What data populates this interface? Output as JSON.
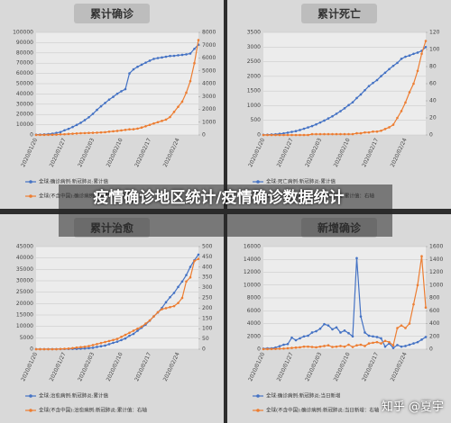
{
  "overlay_title": "疫情确诊地区统计/疫情确诊数据统计",
  "watermark": "知乎 @夏宇",
  "chart_data": [
    {
      "type": "line",
      "title": "累计确诊",
      "categories": [
        "2020/01/20",
        null,
        null,
        null,
        null,
        null,
        null,
        "2020/01/27",
        null,
        null,
        null,
        null,
        null,
        null,
        "2020/02/03",
        null,
        null,
        null,
        null,
        null,
        null,
        "2020/02/10",
        null,
        null,
        null,
        null,
        null,
        null,
        "2020/02/17",
        null,
        null,
        null,
        null,
        null,
        null,
        "2020/02/24",
        null,
        null,
        null,
        null,
        null
      ],
      "series": [
        {
          "name": "全球:确诊病例:新冠肺炎:累计值",
          "color": "#4472c4",
          "values": [
            300,
            440,
            570,
            830,
            1300,
            2000,
            2800,
            4600,
            6000,
            7800,
            9800,
            11900,
            14500,
            17300,
            20600,
            24500,
            28000,
            31200,
            34500,
            37200,
            40200,
            42600,
            44700,
            60000,
            64000,
            66500,
            68500,
            70500,
            72400,
            74200,
            75000,
            75600,
            76300,
            77000,
            77200,
            77700,
            78100,
            78600,
            79400,
            84000,
            88000
          ]
        },
        {
          "name": "全球(不含中国):确诊病例:新冠肺炎:累计值：右轴",
          "color": "#ed7d31",
          "axis": "y2",
          "values": [
            5,
            8,
            10,
            15,
            20,
            30,
            50,
            60,
            80,
            100,
            120,
            140,
            150,
            160,
            170,
            180,
            200,
            220,
            260,
            290,
            320,
            360,
            400,
            440,
            450,
            500,
            580,
            680,
            790,
            900,
            1000,
            1100,
            1200,
            1400,
            1800,
            2200,
            2600,
            3300,
            4200,
            5600,
            7400
          ]
        }
      ],
      "ylim": [
        0,
        100000
      ],
      "yticks": [
        0,
        10000,
        20000,
        30000,
        40000,
        50000,
        60000,
        70000,
        80000,
        90000,
        100000
      ],
      "y2lim": [
        0,
        8000
      ],
      "y2ticks": [
        0,
        1000,
        2000,
        3000,
        4000,
        5000,
        6000,
        7000,
        8000
      ]
    },
    {
      "type": "line",
      "title": "累计死亡",
      "categories": [
        "2020/01/20",
        null,
        null,
        null,
        null,
        null,
        null,
        "2020/01/27",
        null,
        null,
        null,
        null,
        null,
        null,
        "2020/02/03",
        null,
        null,
        null,
        null,
        null,
        null,
        "2020/02/10",
        null,
        null,
        null,
        null,
        null,
        null,
        "2020/02/17",
        null,
        null,
        null,
        null,
        null,
        null,
        "2020/02/24",
        null,
        null,
        null,
        null,
        null
      ],
      "series": [
        {
          "name": "全球:死亡病例:新冠肺炎:累计值",
          "color": "#4472c4",
          "values": [
            6,
            9,
            17,
            25,
            41,
            56,
            80,
            106,
            132,
            170,
            213,
            259,
            304,
            362,
            426,
            492,
            565,
            638,
            724,
            813,
            910,
            1018,
            1115,
            1261,
            1383,
            1526,
            1669,
            1775,
            1873,
            2009,
            2126,
            2247,
            2360,
            2460,
            2600,
            2670,
            2710,
            2770,
            2810,
            2870,
            3000
          ]
        },
        {
          "name": "全球(不含中国):死亡病例:新冠肺炎:累计值：右轴",
          "color": "#ed7d31",
          "axis": "y2",
          "values": [
            0,
            0,
            0,
            0,
            0,
            0,
            0,
            0,
            0,
            0,
            0,
            0,
            1,
            1,
            1,
            1,
            1,
            1,
            1,
            1,
            1,
            1,
            1,
            2,
            2,
            3,
            3,
            4,
            4,
            5,
            7,
            9,
            12,
            20,
            28,
            38,
            50,
            60,
            75,
            95,
            110
          ]
        }
      ],
      "ylim": [
        0,
        3500
      ],
      "yticks": [
        0,
        500,
        1000,
        1500,
        2000,
        2500,
        3000,
        3500
      ],
      "y2lim": [
        0,
        120
      ],
      "y2ticks": [
        0,
        20,
        40,
        60,
        80,
        100,
        120
      ]
    },
    {
      "type": "line",
      "title": "累计治愈",
      "categories": [
        "2020/01/20",
        null,
        null,
        null,
        null,
        null,
        null,
        "2020/01/27",
        null,
        null,
        null,
        null,
        null,
        null,
        "2020/02/03",
        null,
        null,
        null,
        null,
        null,
        null,
        "2020/02/10",
        null,
        null,
        null,
        null,
        null,
        null,
        "2020/02/17",
        null,
        null,
        null,
        null,
        null,
        null,
        "2020/02/24",
        null,
        null,
        null,
        null,
        null
      ],
      "series": [
        {
          "name": "全球:治愈病例:新冠肺炎:累计值",
          "color": "#4472c4",
          "values": [
            25,
            28,
            30,
            35,
            40,
            50,
            60,
            100,
            120,
            140,
            170,
            240,
            330,
            480,
            630,
            1000,
            1300,
            1600,
            2200,
            2800,
            3300,
            4000,
            4700,
            5900,
            6700,
            8100,
            9400,
            10800,
            12500,
            14400,
            16100,
            18100,
            20600,
            22800,
            24700,
            27300,
            29700,
            32500,
            36100,
            39000,
            41500
          ]
        },
        {
          "name": "全球(不含中国):治愈病例:新冠肺炎:累计值：右轴",
          "color": "#ed7d31",
          "axis": "y2",
          "values": [
            0,
            0,
            0,
            0,
            0,
            0,
            1,
            2,
            3,
            5,
            8,
            10,
            12,
            15,
            20,
            25,
            30,
            35,
            40,
            45,
            50,
            60,
            70,
            80,
            90,
            100,
            110,
            125,
            140,
            160,
            180,
            195,
            200,
            205,
            210,
            225,
            250,
            330,
            350,
            430,
            440
          ]
        }
      ],
      "ylim": [
        0,
        45000
      ],
      "yticks": [
        0,
        5000,
        10000,
        15000,
        20000,
        25000,
        30000,
        35000,
        40000,
        45000
      ],
      "y2lim": [
        0,
        500
      ],
      "y2ticks": [
        0,
        50,
        100,
        150,
        200,
        250,
        300,
        350,
        400,
        450,
        500
      ]
    },
    {
      "type": "line",
      "title": "新增确诊",
      "categories": [
        "2020/01/20",
        null,
        null,
        null,
        null,
        null,
        null,
        "2020/01/27",
        null,
        null,
        null,
        null,
        null,
        null,
        "2020/02/03",
        null,
        null,
        null,
        null,
        null,
        null,
        "2020/02/10",
        null,
        null,
        null,
        null,
        null,
        null,
        "2020/02/17",
        null,
        null,
        null,
        null,
        null,
        null,
        "2020/02/24",
        null,
        null,
        null,
        null,
        null
      ],
      "series": [
        {
          "name": "全球:确诊病例:新冠肺炎:当日新增",
          "color": "#4472c4",
          "values": [
            80,
            140,
            130,
            260,
            470,
            700,
            800,
            1800,
            1400,
            1700,
            2000,
            2100,
            2600,
            2800,
            3200,
            3900,
            3700,
            3100,
            3400,
            2600,
            2900,
            2500,
            2000,
            14200,
            5100,
            2600,
            2100,
            2000,
            1900,
            1700,
            400,
            900,
            200,
            650,
            400,
            500,
            700,
            900,
            1100,
            1500,
            1900
          ]
        },
        {
          "name": "全球(不含中国):确诊病例:新冠肺炎:当日新增：右轴",
          "color": "#ed7d31",
          "axis": "y2",
          "values": [
            1,
            2,
            3,
            5,
            8,
            10,
            15,
            20,
            25,
            30,
            40,
            40,
            35,
            30,
            40,
            50,
            60,
            35,
            40,
            50,
            40,
            70,
            35,
            60,
            70,
            50,
            90,
            100,
            110,
            90,
            130,
            110,
            60,
            330,
            370,
            330,
            400,
            700,
            1000,
            1450,
            650
          ]
        }
      ],
      "ylim": [
        0,
        16000
      ],
      "yticks": [
        0,
        2000,
        4000,
        6000,
        8000,
        10000,
        12000,
        14000,
        16000
      ],
      "y2lim": [
        0,
        1600
      ],
      "y2ticks": [
        0,
        200,
        400,
        600,
        800,
        1000,
        1200,
        1400,
        1600
      ]
    }
  ]
}
